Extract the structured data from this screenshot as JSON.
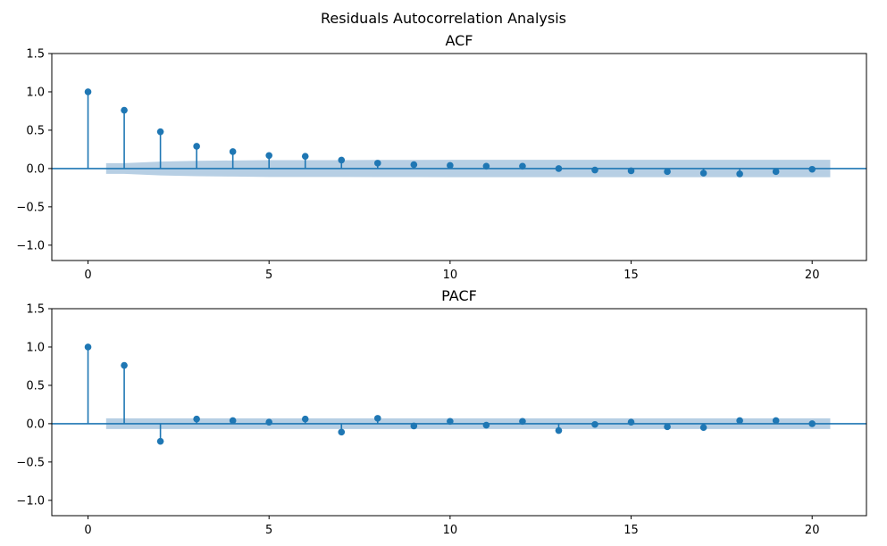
{
  "figure": {
    "suptitle": "Residuals Autocorrelation Analysis"
  },
  "colors": {
    "stem": "#1f77b4",
    "confidence_band": "#b7cfe4",
    "zero_line": "#1f77b4"
  },
  "chart_data": [
    {
      "type": "stem",
      "title": "ACF",
      "xlabel": "",
      "ylabel": "",
      "xlim": [
        -1,
        21.5
      ],
      "ylim": [
        -1.2,
        1.5
      ],
      "xticks": [
        0,
        5,
        10,
        15,
        20
      ],
      "xtick_labels": [
        "0",
        "5",
        "10",
        "15",
        "20"
      ],
      "yticks": [
        1.5,
        1.0,
        0.5,
        0.0,
        -0.5,
        -1.0
      ],
      "ytick_labels": [
        "1.5",
        "1.0",
        "0.5",
        "0.0",
        "−0.5",
        "−1.0"
      ],
      "grid": false,
      "lags": [
        0,
        1,
        2,
        3,
        4,
        5,
        6,
        7,
        8,
        9,
        10,
        11,
        12,
        13,
        14,
        15,
        16,
        17,
        18,
        19,
        20
      ],
      "values": [
        1.0,
        0.76,
        0.48,
        0.29,
        0.22,
        0.17,
        0.16,
        0.11,
        0.07,
        0.05,
        0.04,
        0.03,
        0.03,
        0.0,
        -0.02,
        -0.03,
        -0.04,
        -0.06,
        -0.07,
        -0.04,
        -0.01
      ],
      "confidence_band": {
        "lags": [
          0.5,
          1,
          2,
          3,
          4,
          5,
          6,
          7,
          8,
          9,
          10,
          11,
          12,
          13,
          14,
          15,
          16,
          17,
          18,
          19,
          20,
          20.5
        ],
        "upper": [
          0.07,
          0.07,
          0.09,
          0.1,
          0.105,
          0.11,
          0.11,
          0.11,
          0.112,
          0.112,
          0.113,
          0.113,
          0.113,
          0.113,
          0.113,
          0.113,
          0.113,
          0.113,
          0.114,
          0.114,
          0.114,
          0.114
        ]
      }
    },
    {
      "type": "stem",
      "title": "PACF",
      "xlabel": "",
      "ylabel": "",
      "xlim": [
        -1,
        21.5
      ],
      "ylim": [
        -1.2,
        1.5
      ],
      "xticks": [
        0,
        5,
        10,
        15,
        20
      ],
      "xtick_labels": [
        "0",
        "5",
        "10",
        "15",
        "20"
      ],
      "yticks": [
        1.5,
        1.0,
        0.5,
        0.0,
        -0.5,
        -1.0
      ],
      "ytick_labels": [
        "1.5",
        "1.0",
        "0.5",
        "0.0",
        "−0.5",
        "−1.0"
      ],
      "grid": false,
      "lags": [
        0,
        1,
        2,
        3,
        4,
        5,
        6,
        7,
        8,
        9,
        10,
        11,
        12,
        13,
        14,
        15,
        16,
        17,
        18,
        19,
        20
      ],
      "values": [
        1.0,
        0.76,
        -0.23,
        0.06,
        0.04,
        0.02,
        0.06,
        -0.11,
        0.07,
        -0.03,
        0.03,
        -0.02,
        0.03,
        -0.09,
        -0.01,
        0.02,
        -0.04,
        -0.05,
        0.04,
        0.04,
        0.0
      ],
      "confidence_band": {
        "lags": [
          0.5,
          20.5
        ],
        "upper": [
          0.07,
          0.07
        ]
      }
    }
  ]
}
